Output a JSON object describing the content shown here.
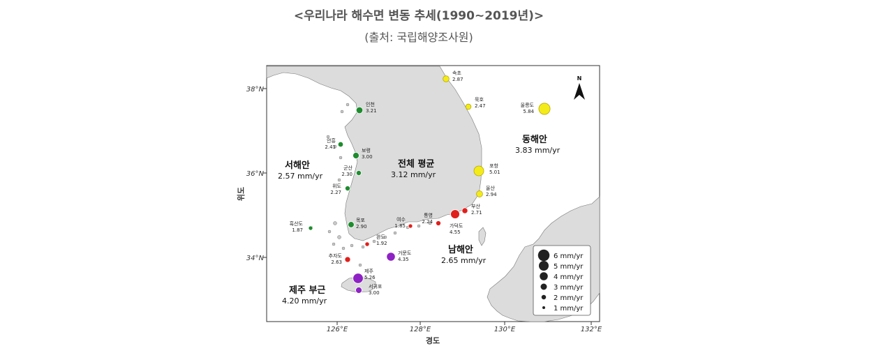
{
  "header": {
    "title": "<우리나라 해수면 변동 추세(1990~2019년)>",
    "source": "(출처: 국립해양조사원)"
  },
  "axes": {
    "xlabel": "경도",
    "ylabel": "위도",
    "lat_ticks": [
      "38°N",
      "36°N",
      "34°N"
    ],
    "lon_ticks": [
      "126°E",
      "128°E",
      "130°E",
      "132°E"
    ]
  },
  "colors": {
    "east": "#f4ec1a",
    "west": "#1e8c2e",
    "south": "#e0201c",
    "jeju": "#8e22c4",
    "land": "#dcdcdc",
    "legend": "#222222"
  },
  "stations": [
    {
      "name": "속초",
      "value": "2.87",
      "region": "east"
    },
    {
      "name": "묵호",
      "value": "2.47",
      "region": "east"
    },
    {
      "name": "울릉도",
      "value": "5.84",
      "region": "east"
    },
    {
      "name": "포항",
      "value": "5.01",
      "region": "east"
    },
    {
      "name": "울산",
      "value": "2.94",
      "region": "east"
    },
    {
      "name": "인천",
      "value": "3.21",
      "region": "west"
    },
    {
      "name": "안흥",
      "value": "2.41",
      "region": "west"
    },
    {
      "name": "보령",
      "value": "3.00",
      "region": "west"
    },
    {
      "name": "군산",
      "value": "2.30",
      "region": "west"
    },
    {
      "name": "위도",
      "value": "2.27",
      "region": "west"
    },
    {
      "name": "흑산도",
      "value": "1.87",
      "region": "west"
    },
    {
      "name": "목포",
      "value": "2.90",
      "region": "west"
    },
    {
      "name": "부산",
      "value": "2.71",
      "region": "south"
    },
    {
      "name": "가덕도",
      "value": "4.55",
      "region": "south"
    },
    {
      "name": "통영",
      "value": "2.24",
      "region": "south"
    },
    {
      "name": "여수",
      "value": "1.85",
      "region": "south"
    },
    {
      "name": "완도",
      "value": "1.92",
      "region": "south"
    },
    {
      "name": "추자도",
      "value": "2.63",
      "region": "south"
    },
    {
      "name": "거문도",
      "value": "4.35",
      "region": "jeju"
    },
    {
      "name": "제주",
      "value": "5.26",
      "region": "jeju"
    },
    {
      "name": "서귀포",
      "value": "3.00",
      "region": "jeju"
    }
  ],
  "regions": [
    {
      "id": "east",
      "name": "동해안",
      "rate": "3.83 mm/yr"
    },
    {
      "id": "west",
      "name": "서해안",
      "rate": "2.57 mm/yr"
    },
    {
      "id": "national",
      "name": "전체 평균",
      "rate": "3.12 mm/yr"
    },
    {
      "id": "south",
      "name": "남해안",
      "rate": "2.65 mm/yr"
    },
    {
      "id": "jeju",
      "name": "제주 부근",
      "rate": "4.20 mm/yr"
    }
  ],
  "legend": {
    "items": [
      {
        "label": "6 mm/yr",
        "value": 6
      },
      {
        "label": "5 mm/yr",
        "value": 5
      },
      {
        "label": "4 mm/yr",
        "value": 4
      },
      {
        "label": "3 mm/yr",
        "value": 3
      },
      {
        "label": "2 mm/yr",
        "value": 2
      },
      {
        "label": "1 mm/yr",
        "value": 1
      }
    ]
  },
  "north_label": "N"
}
